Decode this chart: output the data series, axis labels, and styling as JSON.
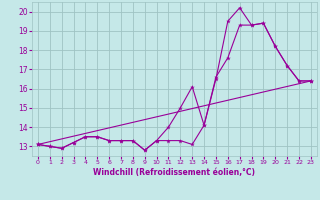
{
  "xlabel": "Windchill (Refroidissement éolien,°C)",
  "xlim": [
    -0.5,
    23.5
  ],
  "ylim": [
    12.5,
    20.5
  ],
  "yticks": [
    13,
    14,
    15,
    16,
    17,
    18,
    19,
    20
  ],
  "xticks": [
    0,
    1,
    2,
    3,
    4,
    5,
    6,
    7,
    8,
    9,
    10,
    11,
    12,
    13,
    14,
    15,
    16,
    17,
    18,
    19,
    20,
    21,
    22,
    23
  ],
  "bg_color": "#c5e8e8",
  "grid_color": "#9fc4c4",
  "line_color": "#990099",
  "series": [
    {
      "x": [
        0,
        1,
        2,
        3,
        4,
        5,
        6,
        7,
        8,
        9,
        10,
        11,
        12,
        13,
        14,
        15,
        16,
        17,
        18,
        19,
        20,
        21,
        22,
        23
      ],
      "y": [
        13.1,
        13.0,
        12.9,
        13.2,
        13.5,
        13.5,
        13.3,
        13.3,
        13.3,
        12.8,
        13.3,
        13.3,
        13.3,
        13.1,
        14.1,
        16.5,
        19.5,
        20.2,
        19.3,
        19.4,
        18.2,
        17.2,
        16.4,
        16.4
      ]
    },
    {
      "x": [
        0,
        1,
        2,
        3,
        4,
        5,
        6,
        7,
        8,
        9,
        10,
        11,
        12,
        13,
        14,
        15,
        16,
        17,
        18,
        19,
        20,
        21,
        22,
        23
      ],
      "y": [
        13.1,
        13.0,
        12.9,
        13.2,
        13.5,
        13.5,
        13.3,
        13.3,
        13.3,
        12.8,
        13.3,
        14.0,
        15.0,
        16.1,
        14.1,
        16.6,
        17.6,
        19.3,
        19.3,
        19.4,
        18.2,
        17.2,
        16.4,
        16.4
      ]
    },
    {
      "x": [
        0,
        23
      ],
      "y": [
        13.1,
        16.4
      ]
    }
  ]
}
